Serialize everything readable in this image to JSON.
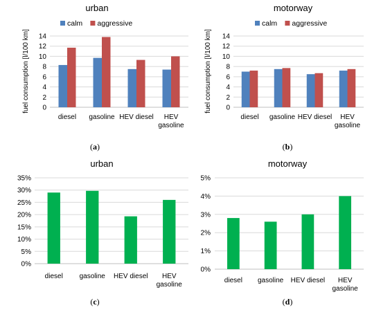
{
  "chart_data": [
    {
      "type": "bar",
      "title": "urban",
      "caption": "(a)",
      "ylabel": "fuel consumption [l/100 km]",
      "categories": [
        [
          "diesel"
        ],
        [
          "gasoline"
        ],
        [
          "HEV diesel"
        ],
        [
          "HEV",
          "gasoline"
        ]
      ],
      "ylim": [
        0,
        14
      ],
      "yticks": [
        "0",
        "2",
        "4",
        "6",
        "8",
        "10",
        "12",
        "14"
      ],
      "series": [
        {
          "name": "calm",
          "color": "#4f81bd",
          "values": [
            8.3,
            9.7,
            7.5,
            7.4
          ]
        },
        {
          "name": "aggressive",
          "color": "#c0504d",
          "values": [
            11.7,
            13.8,
            9.3,
            10.0
          ]
        }
      ],
      "legend": "top"
    },
    {
      "type": "bar",
      "title": "motorway",
      "caption": "(b)",
      "ylabel": "fuel consumption [l/100 km]",
      "categories": [
        [
          "diesel"
        ],
        [
          "gasoline"
        ],
        [
          "HEV diesel"
        ],
        [
          "HEV",
          "gasoline"
        ]
      ],
      "ylim": [
        0,
        14
      ],
      "yticks": [
        "0",
        "2",
        "4",
        "6",
        "8",
        "10",
        "12",
        "14"
      ],
      "series": [
        {
          "name": "calm",
          "color": "#4f81bd",
          "values": [
            7.0,
            7.5,
            6.5,
            7.2
          ]
        },
        {
          "name": "aggressive",
          "color": "#c0504d",
          "values": [
            7.2,
            7.7,
            6.7,
            7.5
          ]
        }
      ],
      "legend": "top"
    },
    {
      "type": "bar",
      "title": "urban",
      "caption": "(c)",
      "categories": [
        [
          "diesel"
        ],
        [
          "gasoline"
        ],
        [
          "HEV diesel"
        ],
        [
          "HEV",
          "gasoline"
        ]
      ],
      "ylim": [
        0,
        35
      ],
      "yticks": [
        "0%",
        "5%",
        "10%",
        "15%",
        "20%",
        "25%",
        "30%",
        "35%"
      ],
      "series": [
        {
          "color": "#00b050",
          "values": [
            29,
            29.7,
            19.3,
            26
          ]
        }
      ]
    },
    {
      "type": "bar",
      "title": "motorway",
      "caption": "(d)",
      "categories": [
        [
          "diesel"
        ],
        [
          "gasoline"
        ],
        [
          "HEV diesel"
        ],
        [
          "HEV",
          "gasoline"
        ]
      ],
      "ylim": [
        0,
        5
      ],
      "yticks": [
        "0%",
        "1%",
        "2%",
        "3%",
        "4%",
        "5%"
      ],
      "series": [
        {
          "color": "#00b050",
          "values": [
            2.8,
            2.6,
            3.0,
            4.0
          ]
        }
      ]
    }
  ]
}
